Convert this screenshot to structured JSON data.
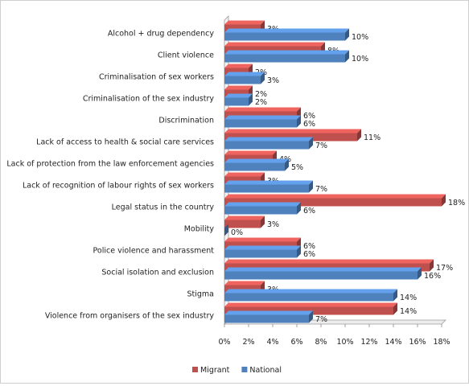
{
  "chart_data": {
    "type": "bar",
    "orientation": "horizontal",
    "categories": [
      "Alcohol + drug dependency",
      "Client violence",
      "Criminalisation of sex workers",
      "Criminalisation of the sex industry",
      "Discrimination",
      "Lack of access to health & social care services",
      "Lack of protection from the law enforcement agencies",
      "Lack of recognition of labour rights of sex workers",
      "Legal status in the country",
      "Mobility",
      "Police violence and harassment",
      "Social isolation and exclusion",
      "Stigma",
      "Violence from organisers of the sex industry"
    ],
    "series": [
      {
        "name": "Migrant",
        "color": "#C0504D",
        "values": [
          3,
          8,
          2,
          2,
          6,
          11,
          4,
          3,
          18,
          3,
          6,
          17,
          3,
          14
        ]
      },
      {
        "name": "National",
        "color": "#4F81BD",
        "values": [
          10,
          10,
          3,
          2,
          6,
          7,
          5,
          7,
          6,
          0,
          6,
          16,
          14,
          7
        ]
      }
    ],
    "value_suffix": "%",
    "xlim": [
      0,
      18
    ],
    "xticks": [
      "0%",
      "2%",
      "4%",
      "6%",
      "8%",
      "10%",
      "12%",
      "14%",
      "16%",
      "18%"
    ],
    "grid": false,
    "legend_position": "bottom",
    "data_labels": true
  }
}
